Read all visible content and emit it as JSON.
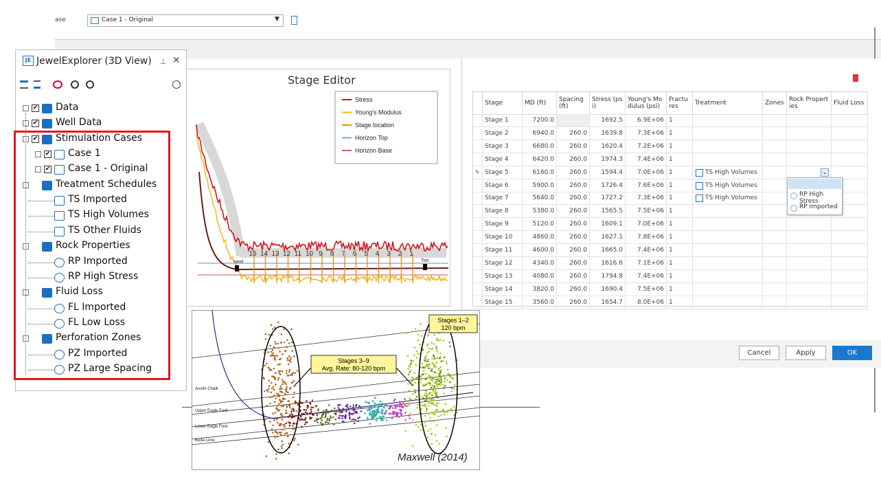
{
  "toolbar": {
    "case_label": "ase",
    "case_select": "Case 1 - Original"
  },
  "explorer": {
    "logo": "JE",
    "title": "JewelExplorer (3D View)",
    "nodes": [
      {
        "label": "Data",
        "level": 0
      },
      {
        "label": "Well Data",
        "level": 0
      },
      {
        "label": "Stimulation Cases",
        "level": 0
      },
      {
        "label": "Case 1",
        "level": 1
      },
      {
        "label": "Case 1 - Original",
        "level": 1
      },
      {
        "label": "Treatment Schedules",
        "level": 0
      },
      {
        "label": "TS Imported",
        "level": 1
      },
      {
        "label": "TS High Volumes",
        "level": 1
      },
      {
        "label": "TS Other Fluids",
        "level": 1
      },
      {
        "label": "Rock Properties",
        "level": 0
      },
      {
        "label": "RP Imported",
        "level": 1
      },
      {
        "label": "RP High Stress",
        "level": 1
      },
      {
        "label": "Fluid Loss",
        "level": 0
      },
      {
        "label": "FL Imported",
        "level": 1
      },
      {
        "label": "FL Low Loss",
        "level": 1
      },
      {
        "label": "Perforation Zones",
        "level": 0
      },
      {
        "label": "PZ Imported",
        "level": 1
      },
      {
        "label": "PZ Large Spacing",
        "level": 1
      }
    ]
  },
  "stage_editor": {
    "title": "Stage Editor",
    "legend": [
      "Stress",
      "Young's Modulus",
      "Stage location",
      "Horizon Top",
      "Horizon Base"
    ],
    "heel": "Heel",
    "toe": "Toe",
    "stage_numbers": [
      "15",
      "14",
      "13",
      "12",
      "11",
      "10",
      "9",
      "8",
      "7",
      "6",
      "5",
      "4",
      "3",
      "2",
      "1"
    ]
  },
  "table": {
    "headers": [
      "Stage",
      "MD (ft)",
      "Spacing (ft)",
      "Stress (psi)",
      "Young's Modulus (psi)",
      "Fractures",
      "Treatment",
      "Zones",
      "Rock Properties",
      "Fluid Loss"
    ],
    "rows": [
      [
        "Stage 1",
        "7200.0",
        null,
        "1692.5",
        "6.9E+06",
        "1"
      ],
      [
        "Stage 2",
        "6940.0",
        "260.0",
        "1639.8",
        "7.3E+06",
        "1"
      ],
      [
        "Stage 3",
        "6680.0",
        "260.0",
        "1620.4",
        "7.2E+06",
        "1"
      ],
      [
        "Stage 4",
        "6420.0",
        "260.0",
        "1974.3",
        "7.4E+06",
        "1"
      ],
      [
        "Stage 5",
        "6160.0",
        "260.0",
        "1594.4",
        "7.0E+06",
        "1",
        "TS High Volumes"
      ],
      [
        "Stage 6",
        "5900.0",
        "260.0",
        "1726.4",
        "7.6E+06",
        "1",
        "TS High Volumes"
      ],
      [
        "Stage 7",
        "5640.0",
        "260.0",
        "1727.2",
        "7.3E+06",
        "1",
        "TS High Volumes"
      ],
      [
        "Stage 8",
        "5380.0",
        "260.0",
        "1565.5",
        "7.5E+06",
        "1"
      ],
      [
        "Stage 9",
        "5120.0",
        "260.0",
        "1609.1",
        "7.0E+06",
        "1"
      ],
      [
        "Stage 10",
        "4860.0",
        "260.0",
        "1627.1",
        "7.8E+06",
        "1"
      ],
      [
        "Stage 11",
        "4600.0",
        "260.0",
        "1665.0",
        "7.4E+06",
        "1"
      ],
      [
        "Stage 12",
        "4340.0",
        "260.0",
        "1616.6",
        "7.1E+06",
        "1"
      ],
      [
        "Stage 13",
        "4080.0",
        "260.0",
        "1794.8",
        "7.4E+06",
        "1"
      ],
      [
        "Stage 14",
        "3820.0",
        "260.0",
        "1690.4",
        "7.5E+06",
        "1"
      ],
      [
        "Stage 15",
        "3560.0",
        "260.0",
        "1654.7",
        "8.0E+06",
        "1"
      ]
    ]
  },
  "dropdown": [
    "RP High Stress",
    "RP Imported"
  ],
  "buttons": [
    "Cancel",
    "Apply",
    "OK"
  ],
  "figure": {
    "callout_right": [
      "Stages 1–2",
      "120 bpm"
    ],
    "callout_mid": [
      "Stages 3–9",
      "Avg. Rate: 80-120 bpm"
    ],
    "formations": [
      "Austin Chalk",
      "Upper Eagle Ford",
      "Lower Eagle Ford",
      "Buda Lime"
    ],
    "credit": "Maxwell (2014)"
  }
}
